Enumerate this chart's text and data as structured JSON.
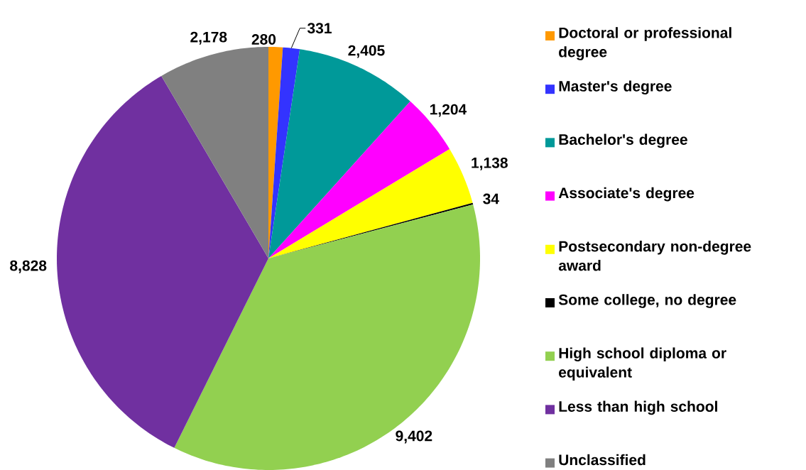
{
  "chart_data": {
    "type": "pie",
    "categories": [
      "Doctoral or professional degree",
      "Master's degree",
      "Bachelor's degree",
      "Associate's degree",
      "Postsecondary non-degree award",
      "Some college, no degree",
      "High school diploma or equivalent",
      "Less than high school",
      "Unclassified"
    ],
    "values": [
      280,
      331,
      2405,
      1204,
      1138,
      34,
      9402,
      8828,
      2178
    ],
    "value_labels": [
      "280",
      "331",
      "2,405",
      "1,204",
      "1,138",
      "34",
      "9,402",
      "8,828",
      "2,178"
    ],
    "colors": [
      "#ff9900",
      "#3333ff",
      "#009999",
      "#ff00ff",
      "#ffff00",
      "#000000",
      "#92d050",
      "#7030a0",
      "#808080"
    ],
    "legend": "right"
  }
}
